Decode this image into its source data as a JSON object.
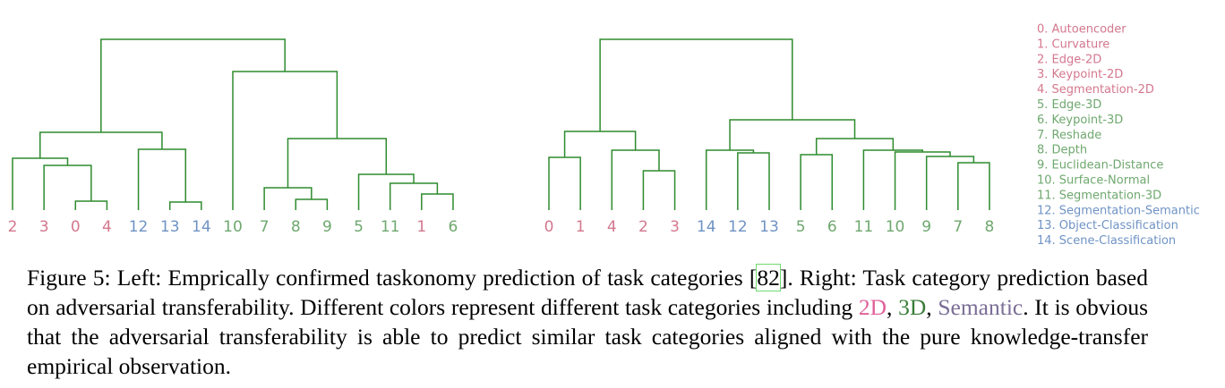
{
  "left_dendrogram": {
    "leaves": [
      "2",
      "3",
      "0",
      "4",
      "12",
      "13",
      "14",
      "10",
      "7",
      "8",
      "9",
      "5",
      "11",
      "1",
      "6"
    ],
    "leaf_colors": [
      "#d4788e",
      "#d4788e",
      "#d4788e",
      "#d4788e",
      "#6f93c4",
      "#6f93c4",
      "#6f93c4",
      "#6fa86f",
      "#6fa86f",
      "#6fa86f",
      "#6fa86f",
      "#6fa86f",
      "#6fa86f",
      "#d4788e",
      "#6fa86f"
    ],
    "link_color": "#2e8b2e"
  },
  "right_dendrogram": {
    "leaves": [
      "0",
      "1",
      "4",
      "2",
      "3",
      "14",
      "12",
      "13",
      "5",
      "6",
      "11",
      "10",
      "9",
      "7",
      "8"
    ],
    "leaf_colors": [
      "#d4788e",
      "#d4788e",
      "#d4788e",
      "#d4788e",
      "#d4788e",
      "#6f93c4",
      "#6f93c4",
      "#6f93c4",
      "#6fa86f",
      "#6fa86f",
      "#6fa86f",
      "#6fa86f",
      "#6fa86f",
      "#6fa86f",
      "#6fa86f"
    ],
    "link_color": "#2e8b2e"
  },
  "legend": {
    "items": [
      {
        "text": "0. Autoencoder",
        "color": "#d4788e"
      },
      {
        "text": "1. Curvature",
        "color": "#d4788e"
      },
      {
        "text": "2. Edge-2D",
        "color": "#d4788e"
      },
      {
        "text": "3. Keypoint-2D",
        "color": "#d4788e"
      },
      {
        "text": "4. Segmentation-2D",
        "color": "#d4788e"
      },
      {
        "text": "5. Edge-3D",
        "color": "#6fa86f"
      },
      {
        "text": "6. Keypoint-3D",
        "color": "#6fa86f"
      },
      {
        "text": "7. Reshade",
        "color": "#6fa86f"
      },
      {
        "text": "8. Depth",
        "color": "#6fa86f"
      },
      {
        "text": "9. Euclidean-Distance",
        "color": "#6fa86f"
      },
      {
        "text": "10. Surface-Normal",
        "color": "#6fa86f"
      },
      {
        "text": "11. Segmentation-3D",
        "color": "#6fa86f"
      },
      {
        "text": "12. Segmentation-Semantic",
        "color": "#6f93c4"
      },
      {
        "text": "13. Object-Classification",
        "color": "#6f93c4"
      },
      {
        "text": "14. Scene-Classification",
        "color": "#6f93c4"
      }
    ]
  },
  "caption": {
    "parts": [
      {
        "text": "Figure 5: Left: Emprically confirmed taskonomy prediction of task categories [",
        "color": "#000000"
      },
      {
        "text": "82",
        "color": "#000000",
        "boxed": true
      },
      {
        "text": "]. Right: Task category prediction based on adversarial transferability. Different colors represent different task categories including ",
        "color": "#000000"
      },
      {
        "text": "2D",
        "color": "#e0609a"
      },
      {
        "text": ", ",
        "color": "#000000"
      },
      {
        "text": "3D",
        "color": "#3a7d3a"
      },
      {
        "text": ", ",
        "color": "#000000"
      },
      {
        "text": "Semantic",
        "color": "#7a6e96"
      },
      {
        "text": ". It is obvious that the adversarial transferability is able to predict similar task categories aligned with the pure knowledge-transfer empirical observation.",
        "color": "#000000"
      }
    ]
  }
}
